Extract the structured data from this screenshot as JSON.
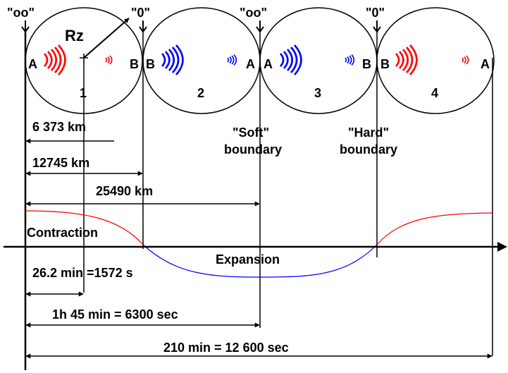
{
  "top_markers": [
    "\"oo\"",
    "\"0\"",
    "\"oo\"",
    "\"0\""
  ],
  "radius_label": "Rz",
  "circles": [
    {
      "number": "1",
      "left_point": "A",
      "right_point": "B",
      "wave_color": "#ff0000"
    },
    {
      "number": "2",
      "left_point": "B",
      "right_point": "A",
      "wave_color": "#0000ff"
    },
    {
      "number": "3",
      "left_point": "A",
      "right_point": "B",
      "wave_color": "#0000ff"
    },
    {
      "number": "4",
      "left_point": "B",
      "right_point": "A",
      "wave_color": "#ff0000"
    }
  ],
  "boundaries": {
    "soft_line1": "\"Soft\"",
    "soft_line2": "boundary",
    "hard_line1": "\"Hard\"",
    "hard_line2": "boundary"
  },
  "distances": [
    "6 373 km",
    "12745 km",
    "25490 km"
  ],
  "phases": {
    "contraction": "Contraction",
    "expansion": "Expansion"
  },
  "curve_colors": {
    "contraction": "#ff0000",
    "expansion": "#0000ff"
  },
  "times": [
    "26.2 min =1572 s",
    "1h 45 min = 6300 sec",
    "210 min = 12 600 sec"
  ]
}
